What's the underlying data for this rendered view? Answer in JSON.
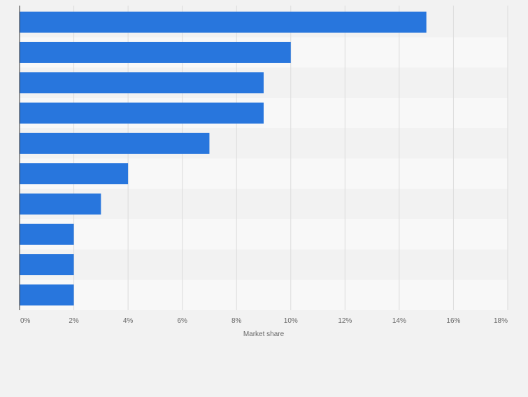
{
  "chart_data": {
    "type": "bar",
    "orientation": "horizontal",
    "categories": [
      "",
      "",
      "",
      "",
      "",
      "",
      "",
      "",
      "",
      ""
    ],
    "values": [
      15,
      10,
      9,
      9,
      7,
      4,
      3,
      2,
      2,
      2
    ],
    "xlabel": "Market share",
    "ylabel": "",
    "xlim": [
      0,
      18
    ],
    "x_ticks": [
      "0%",
      "2%",
      "4%",
      "6%",
      "8%",
      "10%",
      "12%",
      "14%",
      "16%",
      "18%"
    ],
    "grid": true,
    "legend": "none",
    "colors": {
      "bar": "#2876dd",
      "background": "#f2f2f2",
      "band_alt": "#f8f8f8",
      "grid": "#dcdcdc",
      "axis": "#333333",
      "tick_text": "#666666"
    }
  }
}
